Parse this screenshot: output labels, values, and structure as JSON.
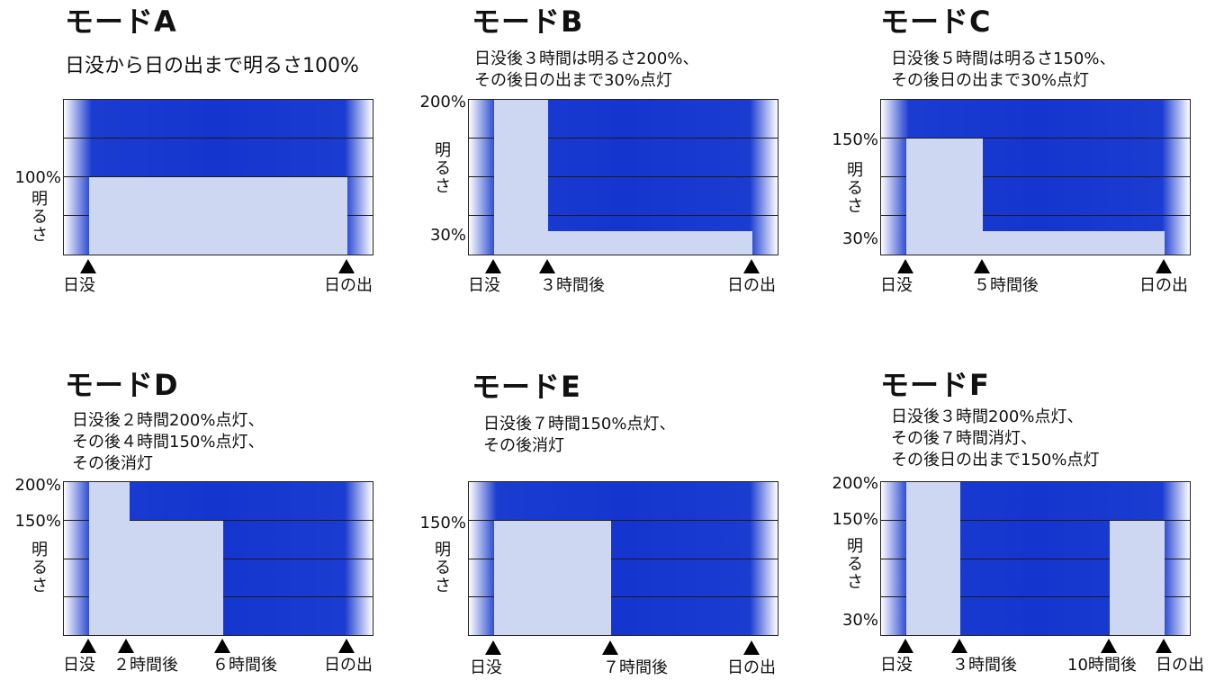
{
  "modes": [
    {
      "title": "モードA",
      "description": [
        "日没から日の出まで明るさ100%"
      ],
      "y_ticks": [
        "100%"
      ],
      "axis_label": [
        "明",
        "る",
        "さ"
      ],
      "markers": [
        "日没",
        "日の出"
      ]
    },
    {
      "title": "モードB",
      "description": [
        "日没後３時間は明るさ200%、",
        "その後日の出まで30%点灯"
      ],
      "y_ticks": [
        "200%",
        "30%"
      ],
      "axis_label": [
        "明",
        "る",
        "さ"
      ],
      "markers": [
        "日没",
        "３時間後",
        "日の出"
      ]
    },
    {
      "title": "モードC",
      "description": [
        "日没後５時間は明るさ150%、",
        "その後日の出まで30%点灯"
      ],
      "y_ticks": [
        "150%",
        "30%"
      ],
      "axis_label": [
        "明",
        "る",
        "さ"
      ],
      "markers": [
        "日没",
        "５時間後",
        "日の出"
      ]
    },
    {
      "title": "モードD",
      "description": [
        "日没後２時間200%点灯、",
        "その後４時間150%点灯、",
        "その後消灯"
      ],
      "y_ticks": [
        "200%",
        "150%"
      ],
      "axis_label": [
        "明",
        "る",
        "さ"
      ],
      "markers": [
        "日没",
        "２時間後",
        "６時間後",
        "日の出"
      ]
    },
    {
      "title": "モードE",
      "description": [
        "日没後７時間150%点灯、",
        "その後消灯"
      ],
      "y_ticks": [
        "150%"
      ],
      "axis_label": [
        "明",
        "る",
        "さ"
      ],
      "markers": [
        "日没",
        "７時間後",
        "日の出"
      ]
    },
    {
      "title": "モードF",
      "description": [
        "日没後３時間200%点灯、",
        "その後７時間消灯、",
        "その後日の出まで150%点灯"
      ],
      "y_ticks": [
        "200%",
        "150%",
        "30%"
      ],
      "axis_label": [
        "明",
        "る",
        "さ"
      ],
      "markers": [
        "日没",
        "３時間後",
        "10時間後",
        "日の出"
      ]
    }
  ],
  "colors": {
    "night_blue": "#1436cf",
    "light_fill": "#cdd7f1",
    "edge_white": "#ffffff",
    "marker": "#000000"
  }
}
